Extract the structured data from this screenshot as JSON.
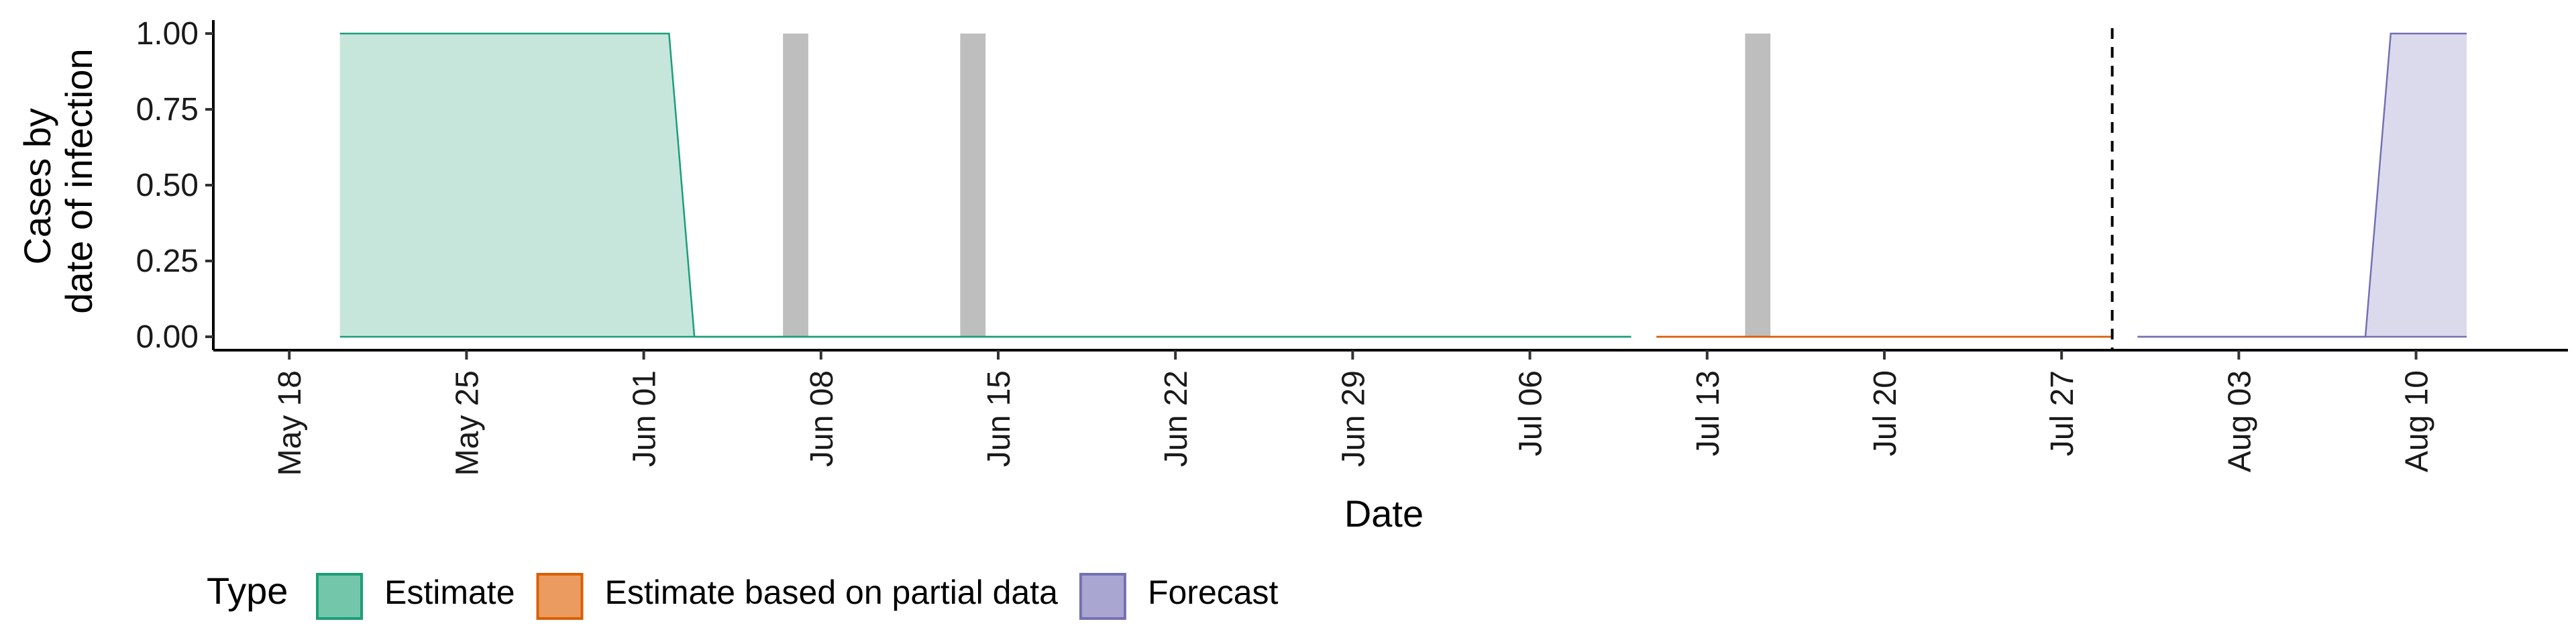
{
  "chart_data": {
    "type": "area",
    "xlabel": "Date",
    "ylabel_lines": [
      "Cases by",
      "date of infection"
    ],
    "ylim": [
      0,
      1
    ],
    "y_ticks": [
      "0.00",
      "0.25",
      "0.50",
      "0.75",
      "1.00"
    ],
    "x_ticks": [
      "May 18",
      "May 25",
      "Jun 01",
      "Jun 08",
      "Jun 15",
      "Jun 22",
      "Jun 29",
      "Jul 06",
      "Jul 13",
      "Jul 20",
      "Jul 27",
      "Aug 03",
      "Aug 10"
    ],
    "x_tick_dates": [
      "2020-05-18",
      "2020-05-25",
      "2020-06-01",
      "2020-06-08",
      "2020-06-15",
      "2020-06-22",
      "2020-06-29",
      "2020-07-06",
      "2020-07-13",
      "2020-07-20",
      "2020-07-27",
      "2020-08-03",
      "2020-08-10"
    ],
    "xlim": [
      "2020-05-15",
      "2020-08-16"
    ],
    "vline_date": "2020-07-29",
    "bars": [
      {
        "date": "2020-06-07",
        "value": 1
      },
      {
        "date": "2020-06-14",
        "value": 1
      },
      {
        "date": "2020-07-15",
        "value": 1
      }
    ],
    "legend": {
      "title": "Type",
      "position": "bottom-left",
      "entries": [
        "Estimate",
        "Estimate based on partial data",
        "Forecast"
      ]
    },
    "series": [
      {
        "name": "Estimate",
        "fill": "#c6e6dc",
        "line": "#1b9e77",
        "legend_fill": "#74c6ab",
        "points": [
          {
            "date": "2020-05-20",
            "lower": 0,
            "upper": 1
          },
          {
            "date": "2020-06-02",
            "lower": 0,
            "upper": 1
          },
          {
            "date": "2020-06-03",
            "lower": 0,
            "upper": 0
          },
          {
            "date": "2020-07-10",
            "lower": 0,
            "upper": 0
          }
        ]
      },
      {
        "name": "Estimate based on partial data",
        "fill": "#f3c8a6",
        "line": "#d95f02",
        "legend_fill": "#eb9b5f",
        "points": [
          {
            "date": "2020-07-11",
            "lower": 0,
            "upper": 0
          },
          {
            "date": "2020-07-29",
            "lower": 0,
            "upper": 0
          }
        ]
      },
      {
        "name": "Forecast",
        "fill": "#dbdaed",
        "line": "#7570b3",
        "legend_fill": "#aaa6d2",
        "points": [
          {
            "date": "2020-07-30",
            "lower": 0,
            "upper": 0
          },
          {
            "date": "2020-08-08",
            "lower": 0,
            "upper": 0
          },
          {
            "date": "2020-08-09",
            "lower": 0,
            "upper": 1
          },
          {
            "date": "2020-08-12",
            "lower": 0,
            "upper": 1
          }
        ]
      }
    ]
  }
}
